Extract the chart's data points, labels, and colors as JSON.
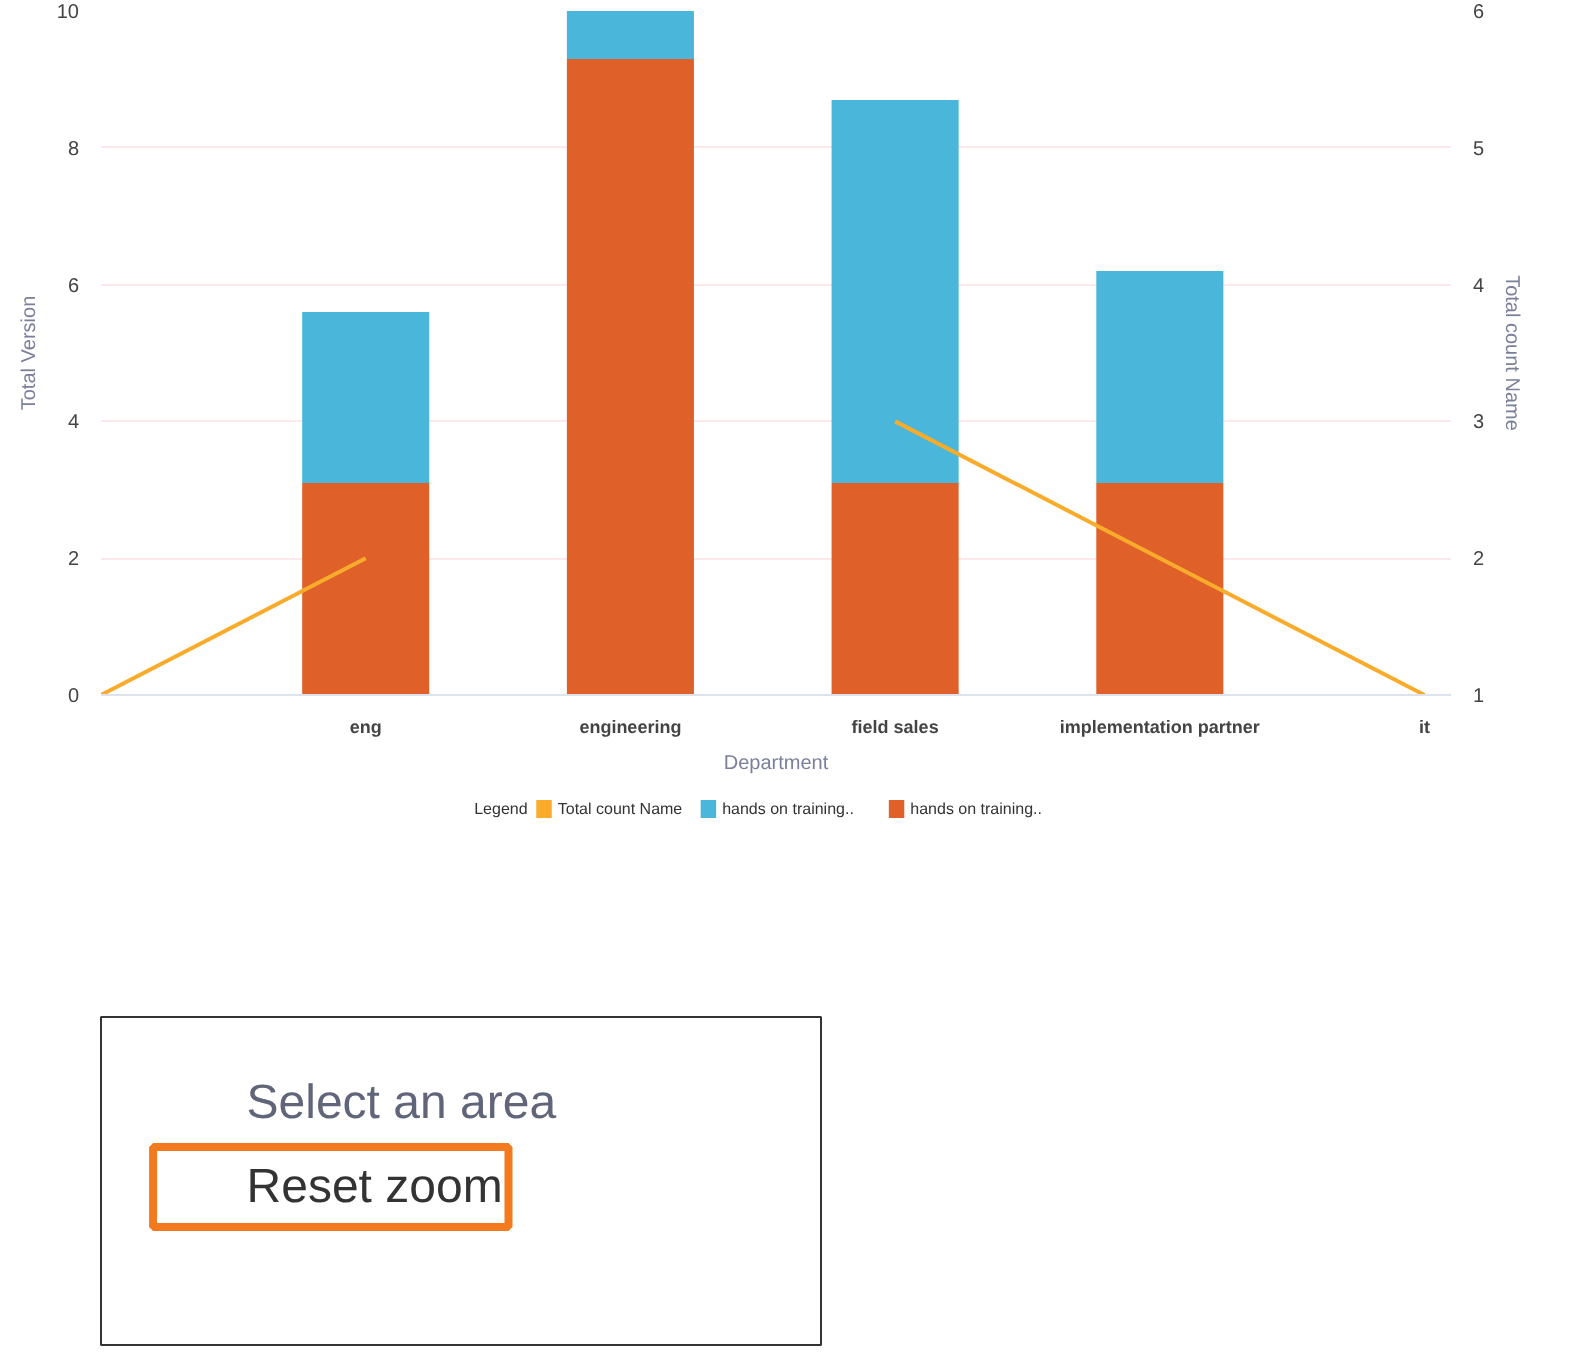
{
  "chart_data": [
    {
      "type": "bar",
      "stacked": true,
      "categories": [
        null,
        "eng",
        "engineering",
        "field sales",
        "implementation partner",
        "it"
      ],
      "xlabel": "Department",
      "ylabel": "Total Version",
      "y2label": "Total count Name",
      "ylim": [
        0,
        10
      ],
      "yticks": [
        0,
        2,
        4,
        6,
        8,
        10
      ],
      "y2lim": [
        1,
        6
      ],
      "y2ticks": [
        1,
        2,
        3,
        4,
        5,
        6
      ],
      "grid": "y",
      "legend": "bottom",
      "legend_title": "Legend",
      "series": [
        {
          "name": "Total count Name",
          "type": "line",
          "axis": "y2",
          "color": "#f9ac2c",
          "values": [
            1,
            2,
            null,
            3,
            2,
            1
          ]
        },
        {
          "name": "hands on training..",
          "color": "#e0602a",
          "values": [
            null,
            3.1,
            9.3,
            3.1,
            3.1,
            null
          ]
        },
        {
          "name": "hands on training..",
          "color": "#4ab6d9",
          "values": [
            null,
            2.5,
            0.7,
            5.6,
            3.1,
            null
          ]
        }
      ]
    },
    {
      "type": "other",
      "annotations": [
        "Select an area",
        "Reset zoom"
      ]
    }
  ]
}
